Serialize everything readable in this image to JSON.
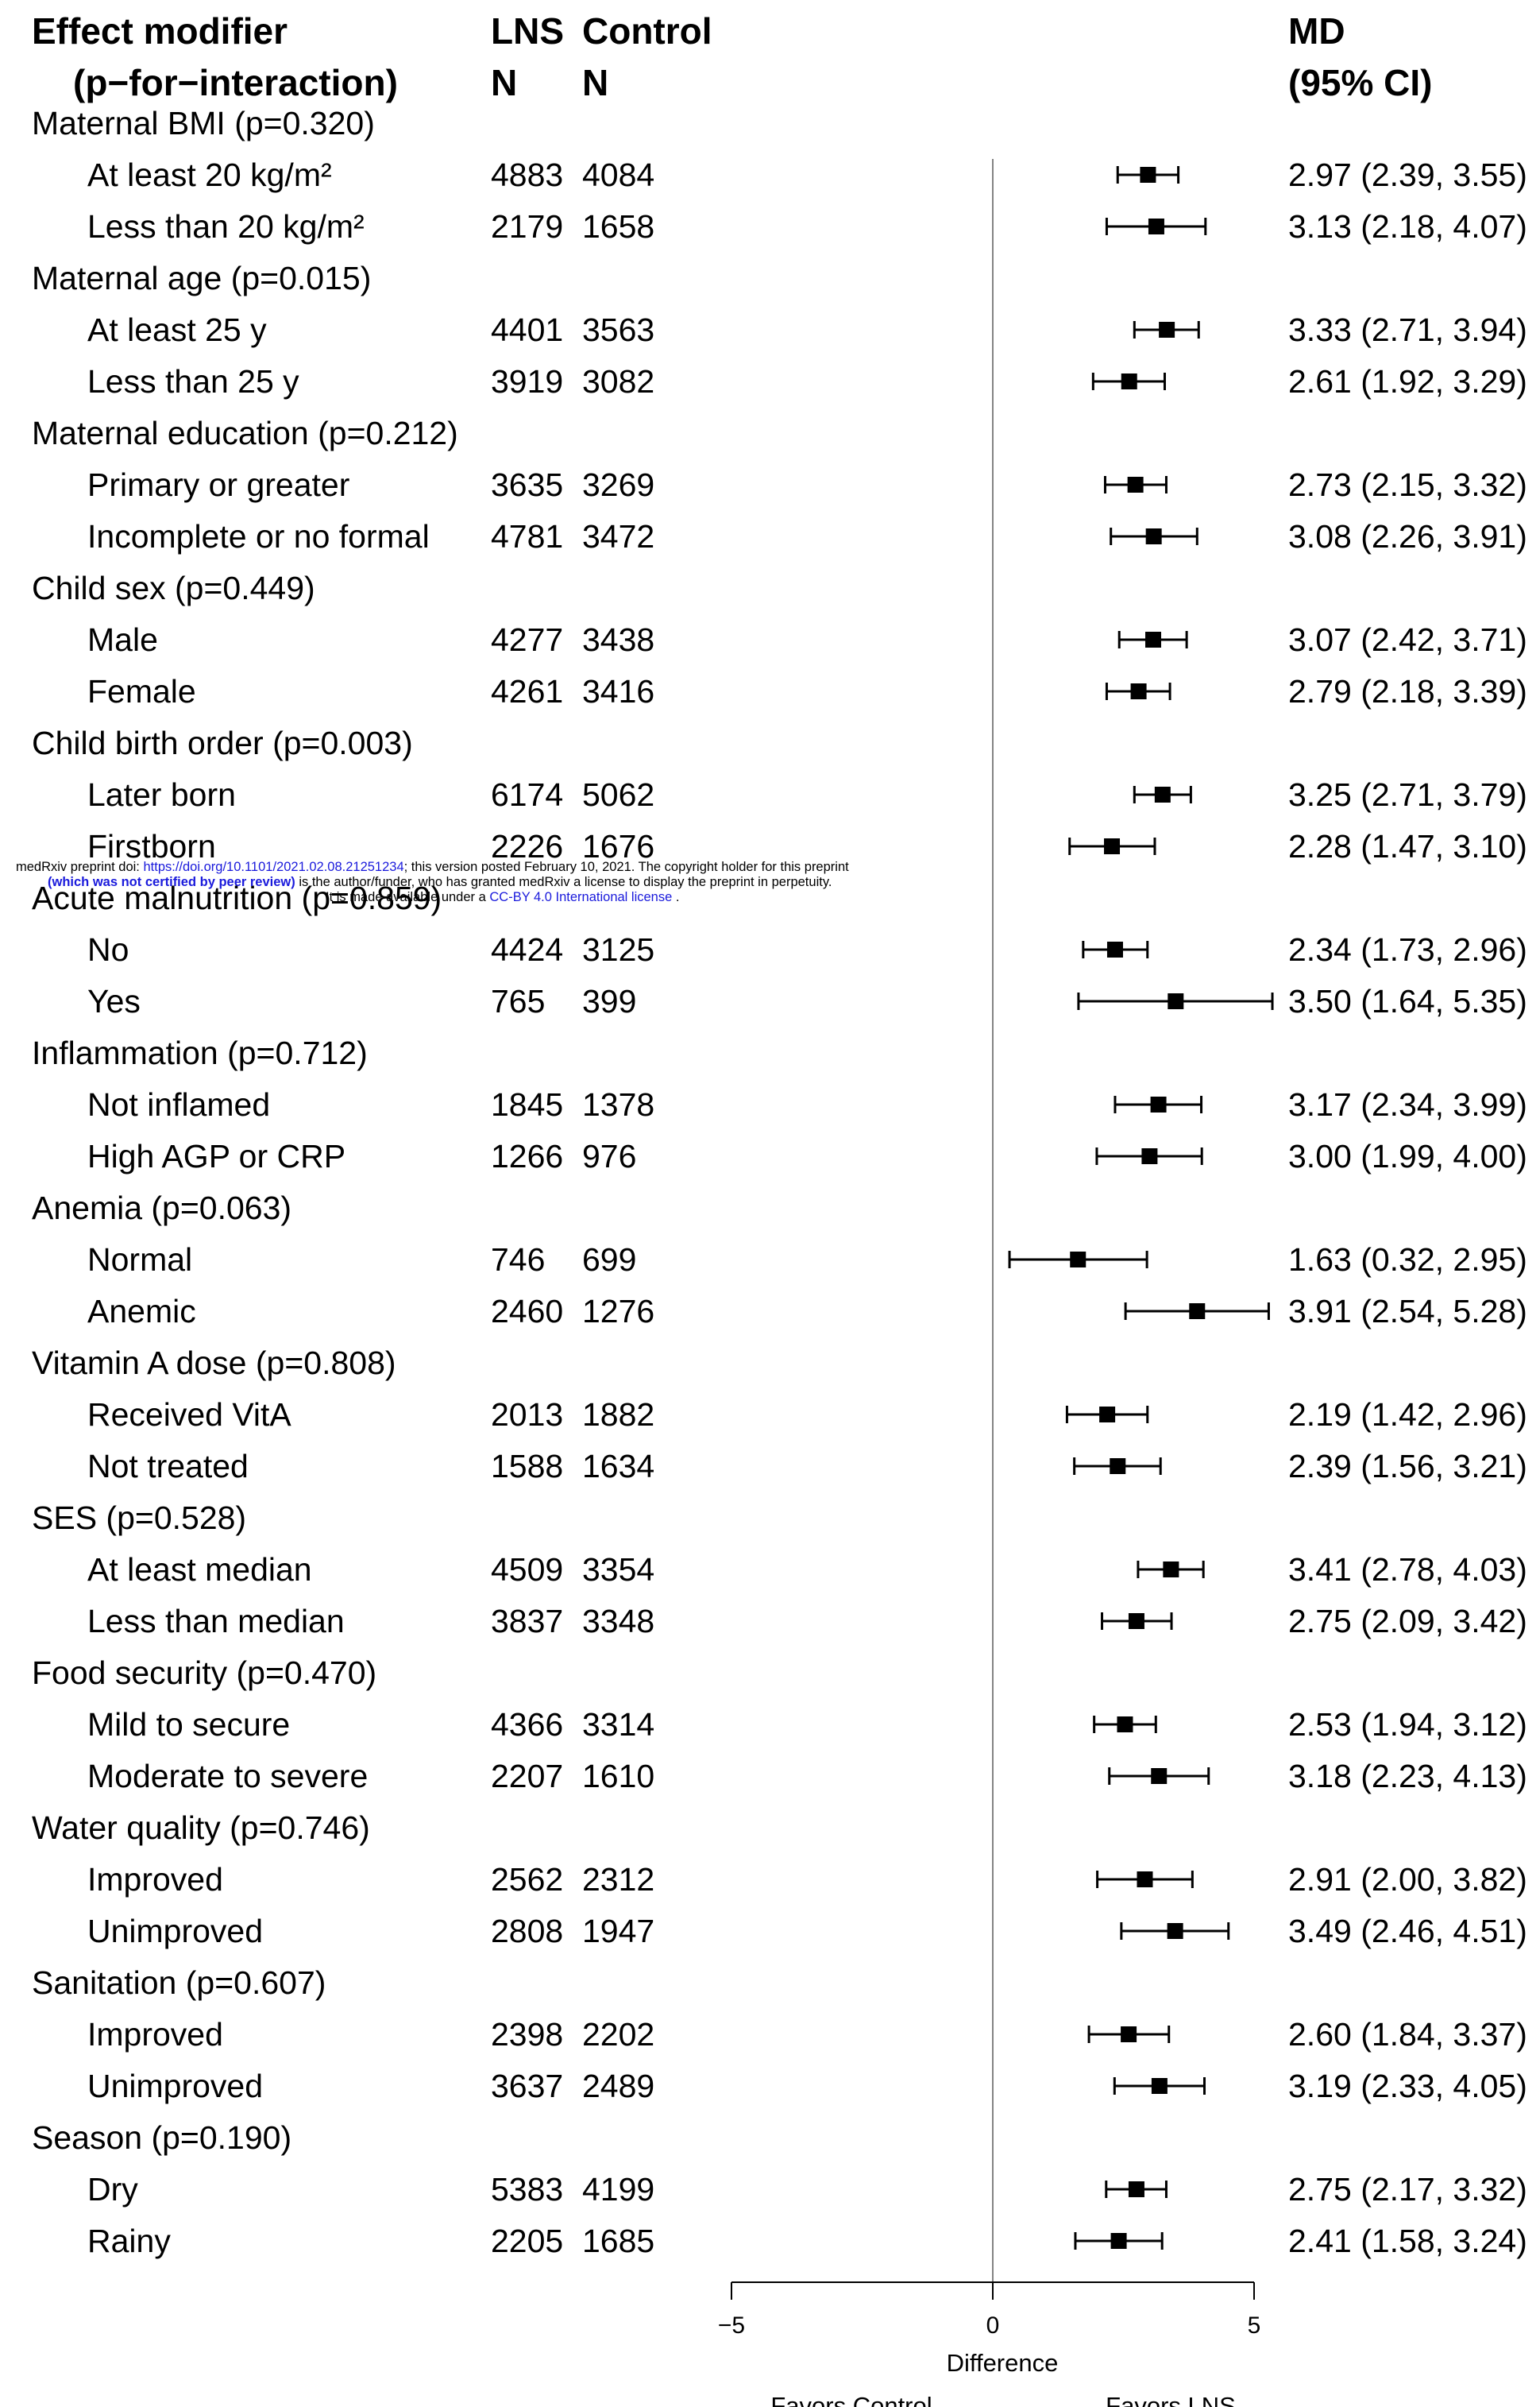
{
  "header": {
    "col1_line1": "Effect modifier",
    "col1_line2": "(p−for−interaction)",
    "lns_line1": "LNS",
    "lns_line2": "N",
    "ctrl_line1": "Control",
    "ctrl_line2": "N",
    "md_line1": "MD",
    "md_line2": "(95% CI)"
  },
  "banner": {
    "line1_a": "medRxiv preprint doi: ",
    "line1_link": "https://doi.org/10.1101/2021.02.08.21251234",
    "line1_b": "; this version posted February 10, 2021. The copyright holder for this preprint",
    "line2_strong": "(which was not certified by peer review)",
    "line2_b": " is the author/funder, who has granted medRxiv a license to display the preprint in perpetuity.",
    "line3_a": "It is made available under a ",
    "line3_link": "CC-BY 4.0 International license",
    "line3_b": " ."
  },
  "chart_data": {
    "type": "forest",
    "xlabel": "Difference",
    "xlim": [
      -5,
      5
    ],
    "xticks": [
      -5,
      0,
      5
    ],
    "xtick_labels": [
      "−5",
      "0",
      "5"
    ],
    "reference_line": 0,
    "favors_left": "Favors Control",
    "favors_right": "Favors LNS",
    "groups": [
      {
        "label": "Maternal BMI (p=0.320)",
        "rows": [
          {
            "label": "At least 20 kg/m²",
            "lns_n": "4883",
            "ctrl_n": "4084",
            "md": 2.97,
            "lo": 2.39,
            "hi": 3.55,
            "text": "2.97 (2.39, 3.55)"
          },
          {
            "label": "Less than 20 kg/m²",
            "lns_n": "2179",
            "ctrl_n": "1658",
            "md": 3.13,
            "lo": 2.18,
            "hi": 4.07,
            "text": "3.13 (2.18, 4.07)"
          }
        ]
      },
      {
        "label": "Maternal age (p=0.015)",
        "rows": [
          {
            "label": "At least 25 y",
            "lns_n": "4401",
            "ctrl_n": "3563",
            "md": 3.33,
            "lo": 2.71,
            "hi": 3.94,
            "text": "3.33 (2.71, 3.94)"
          },
          {
            "label": "Less than 25 y",
            "lns_n": "3919",
            "ctrl_n": "3082",
            "md": 2.61,
            "lo": 1.92,
            "hi": 3.29,
            "text": "2.61 (1.92, 3.29)"
          }
        ]
      },
      {
        "label": "Maternal education (p=0.212)",
        "rows": [
          {
            "label": "Primary or greater",
            "lns_n": "3635",
            "ctrl_n": "3269",
            "md": 2.73,
            "lo": 2.15,
            "hi": 3.32,
            "text": "2.73 (2.15, 3.32)"
          },
          {
            "label": "Incomplete or no formal",
            "lns_n": "4781",
            "ctrl_n": "3472",
            "md": 3.08,
            "lo": 2.26,
            "hi": 3.91,
            "text": "3.08 (2.26, 3.91)"
          }
        ]
      },
      {
        "label": "Child sex (p=0.449)",
        "rows": [
          {
            "label": "Male",
            "lns_n": "4277",
            "ctrl_n": "3438",
            "md": 3.07,
            "lo": 2.42,
            "hi": 3.71,
            "text": "3.07 (2.42, 3.71)"
          },
          {
            "label": "Female",
            "lns_n": "4261",
            "ctrl_n": "3416",
            "md": 2.79,
            "lo": 2.18,
            "hi": 3.39,
            "text": "2.79 (2.18, 3.39)"
          }
        ]
      },
      {
        "label": "Child birth order (p=0.003)",
        "rows": [
          {
            "label": "Later born",
            "lns_n": "6174",
            "ctrl_n": "5062",
            "md": 3.25,
            "lo": 2.71,
            "hi": 3.79,
            "text": "3.25 (2.71, 3.79)"
          },
          {
            "label": "Firstborn",
            "lns_n": "2226",
            "ctrl_n": "1676",
            "md": 2.28,
            "lo": 1.47,
            "hi": 3.1,
            "text": "2.28 (1.47, 3.10)"
          }
        ]
      },
      {
        "label": "Acute malnutrition (p=0.859)",
        "rows": [
          {
            "label": "No",
            "lns_n": "4424",
            "ctrl_n": "3125",
            "md": 2.34,
            "lo": 1.73,
            "hi": 2.96,
            "text": "2.34 (1.73, 2.96)"
          },
          {
            "label": "Yes",
            "lns_n": "765",
            "ctrl_n": "399",
            "md": 3.5,
            "lo": 1.64,
            "hi": 5.35,
            "text": "3.50 (1.64, 5.35)"
          }
        ]
      },
      {
        "label": "Inflammation (p=0.712)",
        "rows": [
          {
            "label": "Not inflamed",
            "lns_n": "1845",
            "ctrl_n": "1378",
            "md": 3.17,
            "lo": 2.34,
            "hi": 3.99,
            "text": "3.17 (2.34, 3.99)"
          },
          {
            "label": "High AGP or CRP",
            "lns_n": "1266",
            "ctrl_n": "976",
            "md": 3.0,
            "lo": 1.99,
            "hi": 4.0,
            "text": "3.00 (1.99, 4.00)"
          }
        ]
      },
      {
        "label": "Anemia (p=0.063)",
        "rows": [
          {
            "label": "Normal",
            "lns_n": "746",
            "ctrl_n": "699",
            "md": 1.63,
            "lo": 0.32,
            "hi": 2.95,
            "text": "1.63 (0.32, 2.95)"
          },
          {
            "label": "Anemic",
            "lns_n": "2460",
            "ctrl_n": "1276",
            "md": 3.91,
            "lo": 2.54,
            "hi": 5.28,
            "text": "3.91 (2.54, 5.28)"
          }
        ]
      },
      {
        "label": "Vitamin A dose (p=0.808)",
        "rows": [
          {
            "label": "Received VitA",
            "lns_n": "2013",
            "ctrl_n": "1882",
            "md": 2.19,
            "lo": 1.42,
            "hi": 2.96,
            "text": "2.19 (1.42, 2.96)"
          },
          {
            "label": "Not treated",
            "lns_n": "1588",
            "ctrl_n": "1634",
            "md": 2.39,
            "lo": 1.56,
            "hi": 3.21,
            "text": "2.39 (1.56, 3.21)"
          }
        ]
      },
      {
        "label": "SES (p=0.528)",
        "rows": [
          {
            "label": "At least median",
            "lns_n": "4509",
            "ctrl_n": "3354",
            "md": 3.41,
            "lo": 2.78,
            "hi": 4.03,
            "text": "3.41 (2.78, 4.03)"
          },
          {
            "label": "Less than median",
            "lns_n": "3837",
            "ctrl_n": "3348",
            "md": 2.75,
            "lo": 2.09,
            "hi": 3.42,
            "text": "2.75 (2.09, 3.42)"
          }
        ]
      },
      {
        "label": "Food security (p=0.470)",
        "rows": [
          {
            "label": "Mild to secure",
            "lns_n": "4366",
            "ctrl_n": "3314",
            "md": 2.53,
            "lo": 1.94,
            "hi": 3.12,
            "text": "2.53 (1.94, 3.12)"
          },
          {
            "label": "Moderate to severe",
            "lns_n": "2207",
            "ctrl_n": "1610",
            "md": 3.18,
            "lo": 2.23,
            "hi": 4.13,
            "text": "3.18 (2.23, 4.13)"
          }
        ]
      },
      {
        "label": "Water quality (p=0.746)",
        "rows": [
          {
            "label": "Improved",
            "lns_n": "2562",
            "ctrl_n": "2312",
            "md": 2.91,
            "lo": 2.0,
            "hi": 3.82,
            "text": "2.91 (2.00, 3.82)"
          },
          {
            "label": "Unimproved",
            "lns_n": "2808",
            "ctrl_n": "1947",
            "md": 3.49,
            "lo": 2.46,
            "hi": 4.51,
            "text": "3.49 (2.46, 4.51)"
          }
        ]
      },
      {
        "label": "Sanitation (p=0.607)",
        "rows": [
          {
            "label": "Improved",
            "lns_n": "2398",
            "ctrl_n": "2202",
            "md": 2.6,
            "lo": 1.84,
            "hi": 3.37,
            "text": "2.60 (1.84, 3.37)"
          },
          {
            "label": "Unimproved",
            "lns_n": "3637",
            "ctrl_n": "2489",
            "md": 3.19,
            "lo": 2.33,
            "hi": 4.05,
            "text": "3.19 (2.33, 4.05)"
          }
        ]
      },
      {
        "label": "Season (p=0.190)",
        "rows": [
          {
            "label": "Dry",
            "lns_n": "5383",
            "ctrl_n": "4199",
            "md": 2.75,
            "lo": 2.17,
            "hi": 3.32,
            "text": "2.75 (2.17, 3.32)"
          },
          {
            "label": "Rainy",
            "lns_n": "2205",
            "ctrl_n": "1685",
            "md": 2.41,
            "lo": 1.58,
            "hi": 3.24,
            "text": "2.41 (1.58, 3.24)"
          }
        ]
      }
    ]
  }
}
